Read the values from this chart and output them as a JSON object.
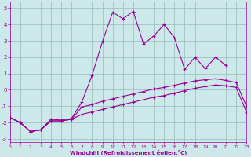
{
  "xlabel": "Windchill (Refroidissement éolien,°C)",
  "xlim": [
    0,
    23
  ],
  "ylim": [
    -3.2,
    5.4
  ],
  "xticks": [
    0,
    1,
    2,
    3,
    4,
    5,
    6,
    7,
    8,
    9,
    10,
    11,
    12,
    13,
    14,
    15,
    16,
    17,
    18,
    19,
    20,
    21,
    22,
    23
  ],
  "yticks": [
    -3,
    -2,
    -1,
    0,
    1,
    2,
    3,
    4,
    5
  ],
  "bg_color": "#cce8e8",
  "line_color": "#990099",
  "grid_color": "#99bbbb",
  "line1_x": [
    0,
    1,
    2,
    3,
    4,
    5,
    6,
    7,
    8,
    9,
    10,
    11,
    12,
    13,
    14,
    15,
    16,
    17,
    18,
    19,
    20,
    21,
    22,
    23
  ],
  "line1_y": [
    -1.7,
    -2.0,
    -2.55,
    -2.45,
    -1.9,
    -1.9,
    -1.8,
    -1.5,
    -1.35,
    -1.2,
    -1.05,
    -0.9,
    -0.75,
    -0.6,
    -0.45,
    -0.35,
    -0.2,
    -0.05,
    0.1,
    0.2,
    0.3,
    0.25,
    0.15,
    -1.35
  ],
  "line2_x": [
    0,
    1,
    2,
    3,
    4,
    5,
    6,
    7,
    8,
    9,
    10,
    11,
    12,
    13,
    14,
    15,
    16,
    17,
    18,
    19,
    20,
    21,
    22,
    23
  ],
  "line2_y": [
    -1.7,
    -2.0,
    -2.55,
    -2.45,
    -1.9,
    -1.9,
    -1.8,
    -1.05,
    -0.9,
    -0.7,
    -0.55,
    -0.4,
    -0.25,
    -0.1,
    0.05,
    0.15,
    0.28,
    0.42,
    0.55,
    0.62,
    0.68,
    0.58,
    0.45,
    -1.0
  ],
  "line3_x": [
    0,
    1,
    2,
    3,
    4,
    5,
    6,
    7,
    8,
    9,
    10,
    11,
    12,
    13,
    14,
    15,
    16,
    17,
    18,
    19,
    20,
    21
  ],
  "line3_y": [
    -1.7,
    -2.0,
    -2.55,
    -2.45,
    -1.8,
    -1.85,
    -1.75,
    -0.75,
    0.9,
    2.95,
    4.75,
    4.35,
    4.8,
    2.8,
    3.3,
    4.0,
    3.2,
    1.25,
    2.0,
    1.3,
    2.0,
    1.5
  ]
}
